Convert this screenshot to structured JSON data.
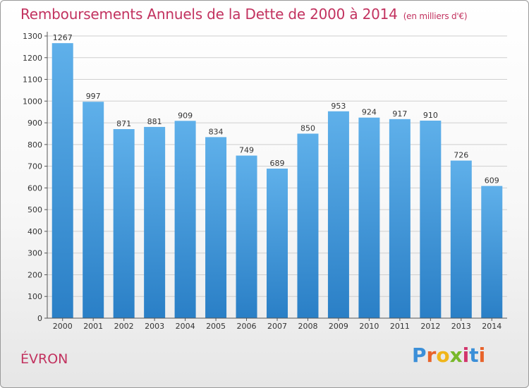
{
  "page": {
    "title": "Remboursements Annuels de la Dette de 2000 à 2014",
    "unit_note": "(en milliers d'€)",
    "commune": "ÉVRON",
    "logo_parts": [
      "P",
      "r",
      "o",
      "x",
      "i",
      "t",
      "i"
    ]
  },
  "chart_data": {
    "type": "bar",
    "title": "Remboursements Annuels de la Dette de 2000 à 2014",
    "xlabel": "",
    "ylabel": "",
    "categories": [
      "2000",
      "2001",
      "2002",
      "2003",
      "2004",
      "2005",
      "2006",
      "2007",
      "2008",
      "2009",
      "2010",
      "2011",
      "2012",
      "2013",
      "2014"
    ],
    "values": [
      1267,
      997,
      871,
      881,
      909,
      834,
      749,
      689,
      850,
      953,
      924,
      917,
      910,
      726,
      609
    ],
    "ylim": [
      0,
      1300
    ],
    "yticks": [
      0,
      100,
      200,
      300,
      400,
      500,
      600,
      700,
      800,
      900,
      1000,
      1100,
      1200,
      1300
    ],
    "grid": true,
    "colors": {
      "bar_top": "#5fb0ea",
      "bar_bottom": "#2a7fc6",
      "grid": "#cfcfcf",
      "axis": "#555555"
    }
  }
}
